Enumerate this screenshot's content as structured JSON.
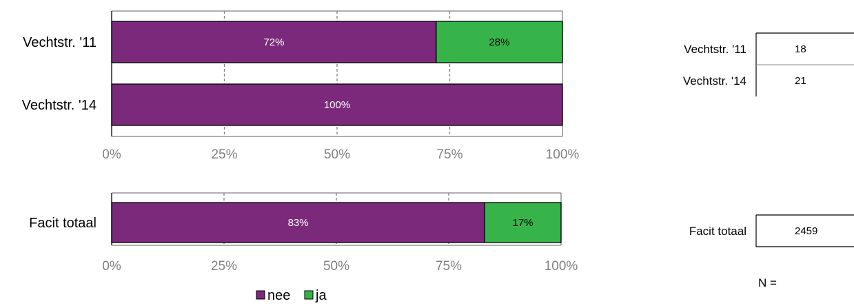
{
  "chart_data": [
    {
      "type": "bar",
      "orientation": "horizontal",
      "stacked": true,
      "categories": [
        "Vechtstr. '11",
        "Vechtstr. '14"
      ],
      "series": [
        {
          "name": "nee",
          "values": [
            72,
            100
          ],
          "labels": [
            "72%",
            "100%"
          ]
        },
        {
          "name": "ja",
          "values": [
            28,
            0
          ],
          "labels": [
            "28%",
            ""
          ]
        }
      ],
      "xlim": [
        0,
        100
      ],
      "xticks": [
        "0%",
        "25%",
        "50%",
        "75%",
        "100%"
      ],
      "grid": "vertical dashed"
    },
    {
      "type": "bar",
      "orientation": "horizontal",
      "stacked": true,
      "categories": [
        "Facit totaal"
      ],
      "series": [
        {
          "name": "nee",
          "values": [
            83
          ],
          "labels": [
            "83%"
          ]
        },
        {
          "name": "ja",
          "values": [
            17
          ],
          "labels": [
            "17%"
          ]
        }
      ],
      "xlim": [
        0,
        100
      ],
      "xticks": [
        "0%",
        "25%",
        "50%",
        "75%",
        "100%"
      ],
      "grid": "vertical dashed"
    }
  ],
  "colors": {
    "nee": "#7B2A7B",
    "ja": "#36B44A",
    "grid": "#808080",
    "axis_text": "#808080"
  },
  "legend": {
    "items": [
      "nee",
      "ja"
    ],
    "placement": "bottom"
  },
  "n_table": {
    "label": "N =",
    "groups": [
      {
        "rows": [
          {
            "label": "Vechtstr. '11",
            "value": "18"
          },
          {
            "label": "Vechtstr. '14",
            "value": "21"
          }
        ]
      },
      {
        "rows": [
          {
            "label": "Facit totaal",
            "value": "2459"
          }
        ]
      }
    ]
  }
}
